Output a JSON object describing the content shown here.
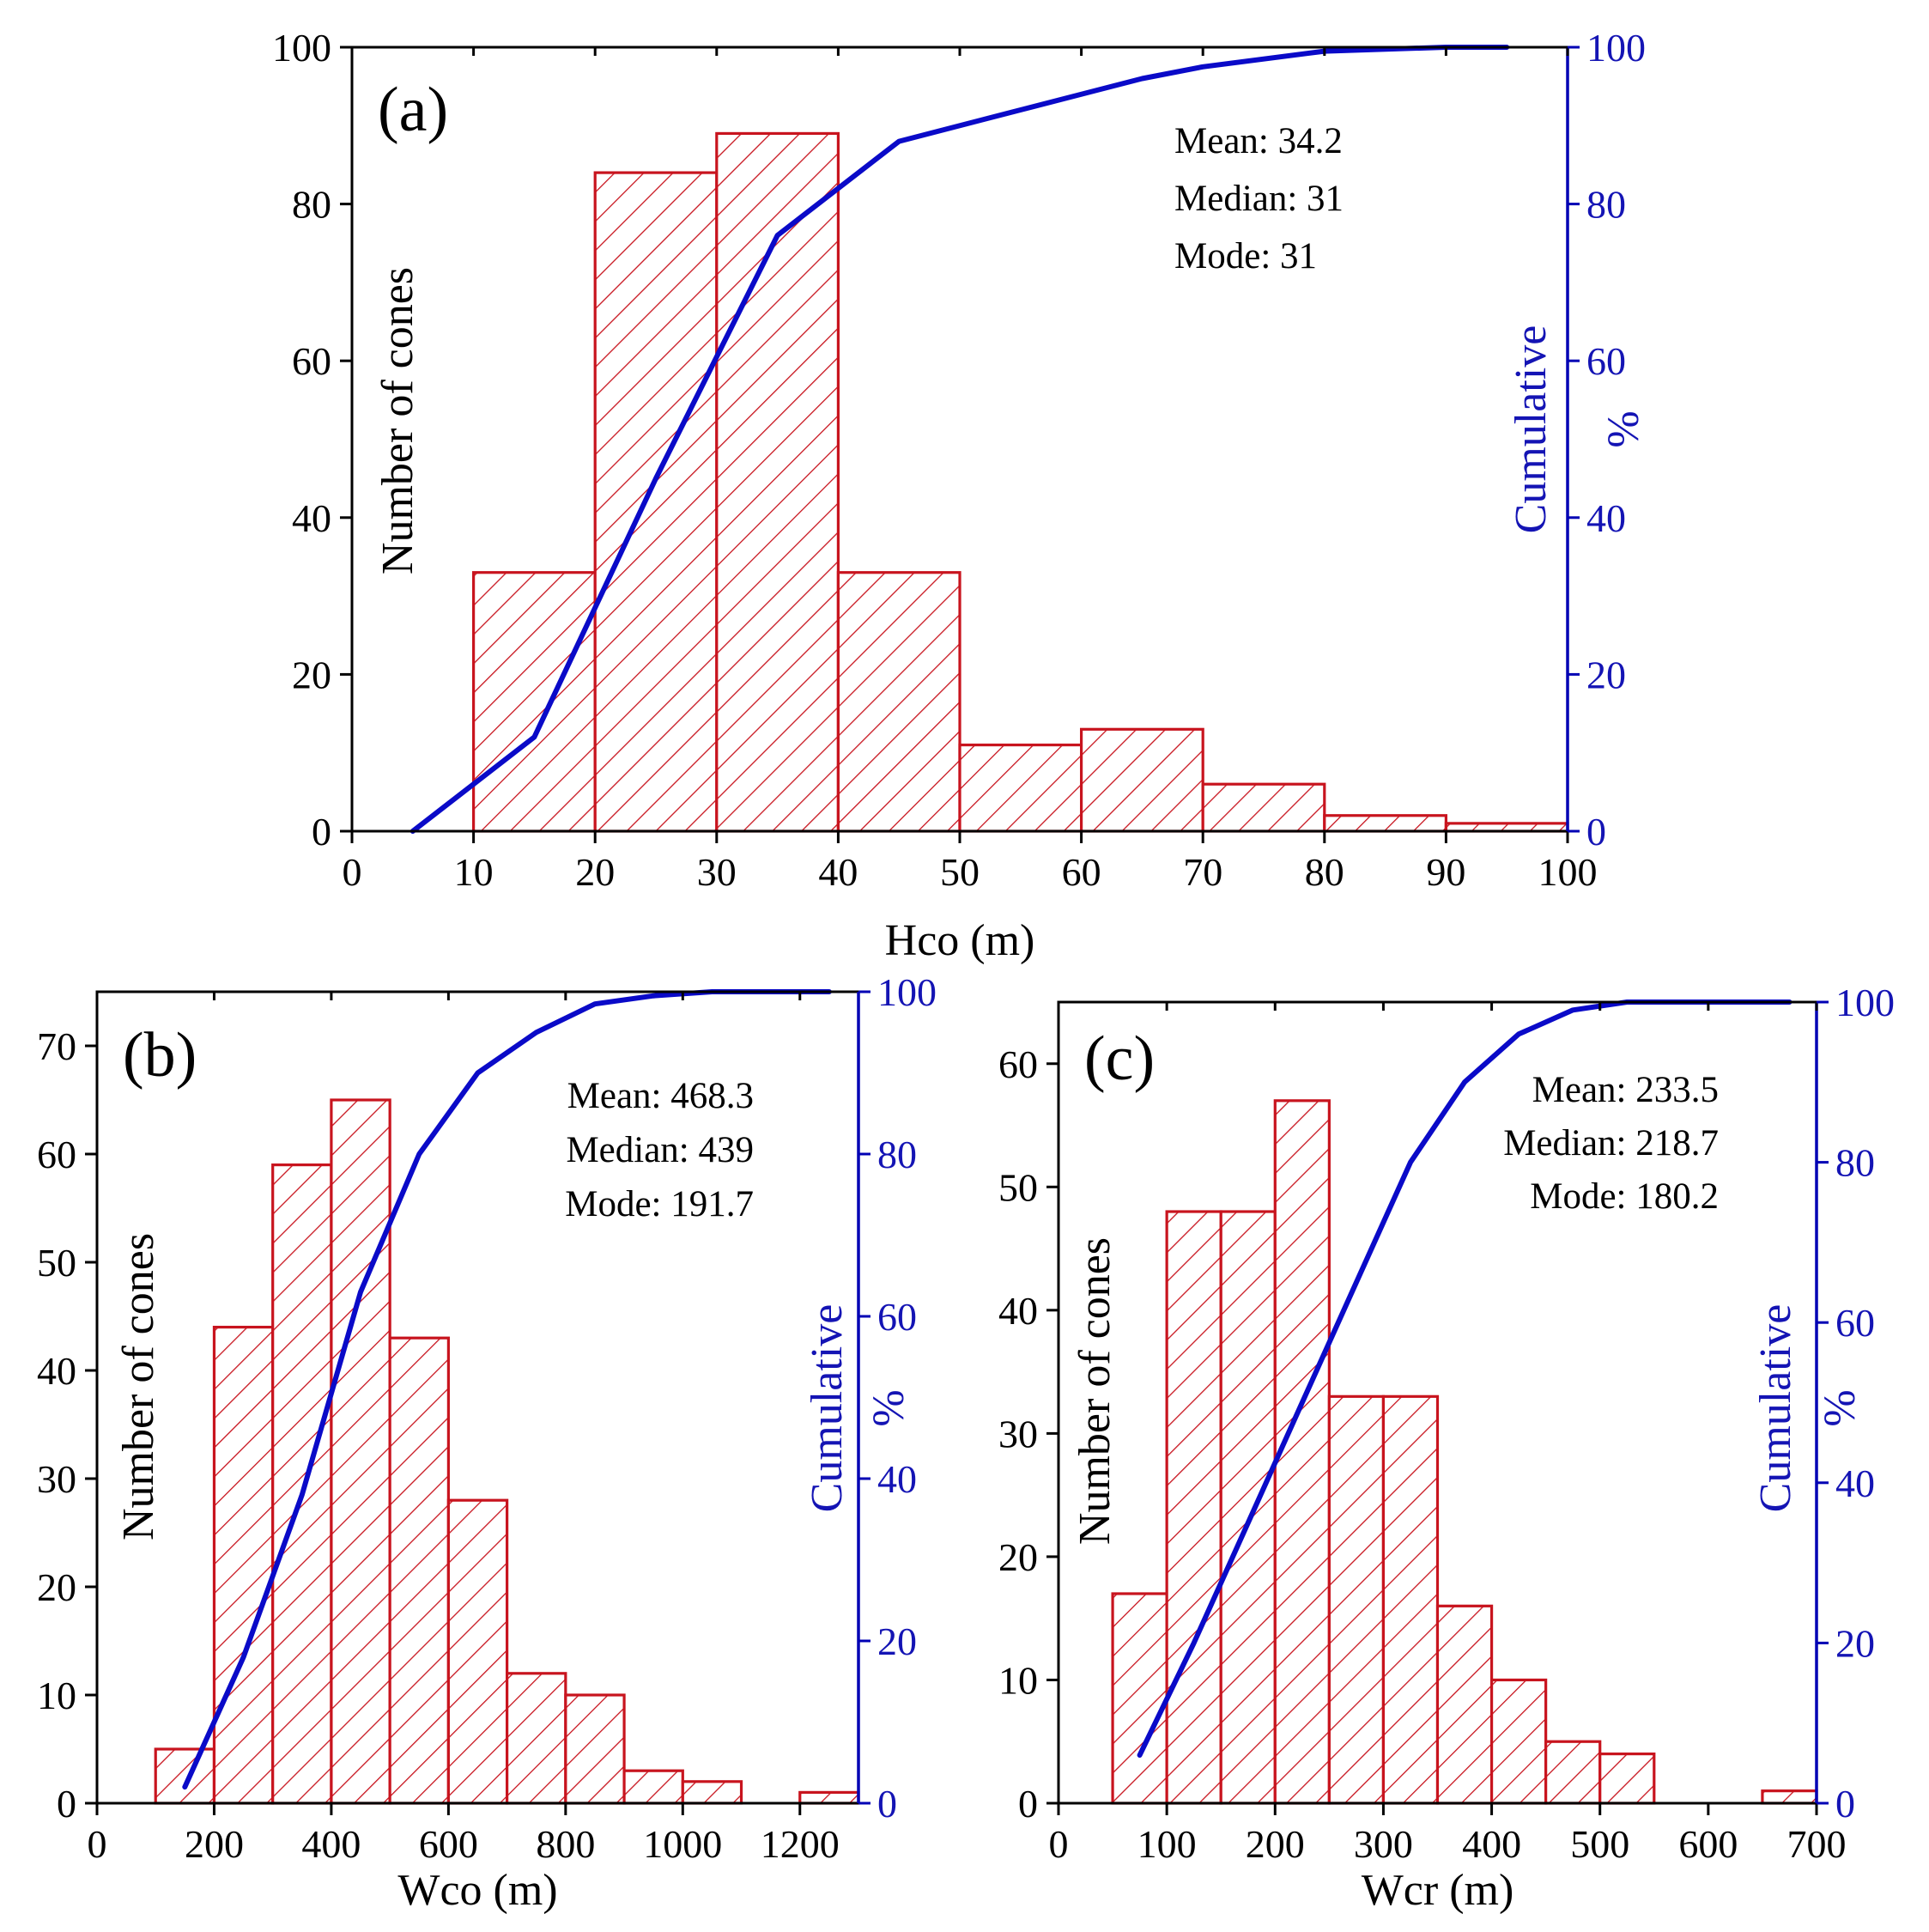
{
  "chart_data": [
    {
      "type": "bar",
      "panel_label": "(a)",
      "xlabel": "Hco (m)",
      "ylabel": "Number of cones",
      "y2label_line1": "Cumulative",
      "y2label_line2": "%",
      "xlim": [
        0,
        100
      ],
      "ylim": [
        0,
        100
      ],
      "y2lim": [
        0,
        100
      ],
      "xticks": [
        0,
        10,
        20,
        30,
        40,
        50,
        60,
        70,
        80,
        90,
        100
      ],
      "yticks": [
        0,
        20,
        40,
        60,
        80,
        100
      ],
      "y2ticks": [
        0,
        20,
        40,
        60,
        80,
        100
      ],
      "bins": [
        [
          10,
          20
        ],
        [
          20,
          30
        ],
        [
          30,
          40
        ],
        [
          40,
          50
        ],
        [
          50,
          60
        ],
        [
          60,
          70
        ],
        [
          70,
          80
        ],
        [
          80,
          90
        ],
        [
          90,
          100
        ]
      ],
      "counts": [
        33,
        84,
        89,
        33,
        11,
        13,
        6,
        2,
        1
      ],
      "cumulative": {
        "x": [
          5,
          15,
          25,
          35,
          45,
          55,
          65,
          70,
          80,
          90,
          95
        ],
        "y": [
          0,
          12,
          45,
          76,
          88,
          92,
          96,
          97.5,
          99.5,
          100,
          100
        ]
      },
      "stats": {
        "mean": "Mean: 34.2",
        "median": "Median: 31",
        "mode": "Mode: 31"
      },
      "colors": {
        "bars": "#c8141e",
        "cumulative": "#0a0ac8",
        "right_axis": "#1414b4"
      }
    },
    {
      "type": "bar",
      "panel_label": "(b)",
      "xlabel": "Wco (m)",
      "ylabel": "Number of cones",
      "y2label_line1": "Cumulative",
      "y2label_line2": "%",
      "xlim": [
        0,
        1300
      ],
      "ylim": [
        0,
        75
      ],
      "y2lim": [
        0,
        100
      ],
      "xticks": [
        0,
        200,
        400,
        600,
        800,
        1000,
        1200
      ],
      "yticks": [
        0,
        10,
        20,
        30,
        40,
        50,
        60,
        70
      ],
      "y2ticks": [
        0,
        20,
        40,
        60,
        80,
        100
      ],
      "bins": [
        [
          100,
          200
        ],
        [
          200,
          300
        ],
        [
          300,
          400
        ],
        [
          400,
          500
        ],
        [
          500,
          600
        ],
        [
          600,
          700
        ],
        [
          700,
          800
        ],
        [
          800,
          900
        ],
        [
          900,
          1000
        ],
        [
          1000,
          1100
        ],
        [
          1200,
          1300
        ]
      ],
      "counts": [
        5,
        44,
        59,
        65,
        43,
        28,
        12,
        10,
        3,
        2,
        1
      ],
      "cumulative": {
        "x": [
          150,
          250,
          350,
          450,
          550,
          650,
          750,
          850,
          950,
          1050,
          1150,
          1250
        ],
        "y": [
          2,
          18,
          38,
          63,
          80,
          90,
          95,
          98.5,
          99.5,
          100,
          100,
          100
        ]
      },
      "stats": {
        "mean": "Mean: 468.3",
        "median": "Median: 439",
        "mode": "Mode: 191.7"
      },
      "colors": {
        "bars": "#c8141e",
        "cumulative": "#0a0ac8",
        "right_axis": "#1414b4"
      }
    },
    {
      "type": "bar",
      "panel_label": "(c)",
      "xlabel": "Wcr (m)",
      "ylabel": "Number of cones",
      "y2label_line1": "Cumulative",
      "y2label_line2": "%",
      "xlim": [
        0,
        700
      ],
      "ylim": [
        0,
        65
      ],
      "y2lim": [
        0,
        100
      ],
      "xticks": [
        0,
        100,
        200,
        300,
        400,
        500,
        600,
        700
      ],
      "yticks": [
        0,
        10,
        20,
        30,
        40,
        50,
        60
      ],
      "y2ticks": [
        0,
        20,
        40,
        60,
        80,
        100
      ],
      "bins": [
        [
          50,
          100
        ],
        [
          100,
          150
        ],
        [
          150,
          200
        ],
        [
          200,
          250
        ],
        [
          250,
          300
        ],
        [
          300,
          350
        ],
        [
          350,
          400
        ],
        [
          400,
          450
        ],
        [
          450,
          500
        ],
        [
          500,
          550
        ],
        [
          650,
          700
        ]
      ],
      "counts": [
        17,
        48,
        48,
        57,
        33,
        33,
        16,
        10,
        5,
        4,
        1
      ],
      "cumulative": {
        "x": [
          75,
          125,
          175,
          225,
          275,
          325,
          375,
          425,
          475,
          525,
          575,
          625,
          675
        ],
        "y": [
          6,
          20,
          35,
          50,
          65,
          80,
          90,
          96,
          99,
          100,
          100,
          100,
          100
        ]
      },
      "stats": {
        "mean": "Mean: 233.5",
        "median": "Median: 218.7",
        "mode": "Mode: 180.2"
      },
      "colors": {
        "bars": "#c8141e",
        "cumulative": "#0a0ac8",
        "right_axis": "#1414b4"
      }
    }
  ]
}
